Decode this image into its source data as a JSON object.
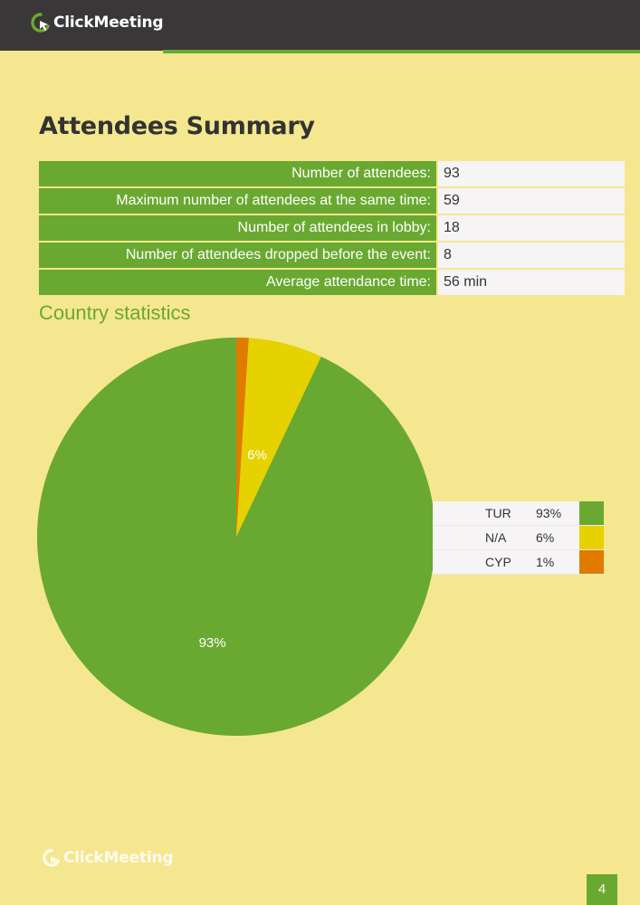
{
  "brand": {
    "name": "ClickMeeting"
  },
  "page": {
    "title": "Attendees Summary",
    "number": "4"
  },
  "summary": {
    "rows": [
      {
        "label": "Number of attendees:",
        "value": "93"
      },
      {
        "label": "Maximum number of attendees at the same time:",
        "value": "59"
      },
      {
        "label": "Number of attendees in lobby:",
        "value": "18"
      },
      {
        "label": "Number of attendees dropped before the event:",
        "value": "8"
      },
      {
        "label": "Average attendance time:",
        "value": "56 min"
      }
    ]
  },
  "country": {
    "heading": "Country statistics"
  },
  "chart_data": {
    "type": "pie",
    "categories": [
      "TUR",
      "N/A",
      "CYP"
    ],
    "values": [
      93,
      6,
      1
    ],
    "labels": [
      "93%",
      "6%",
      "1%"
    ],
    "slice_labels": [
      "93%",
      "6%",
      ""
    ],
    "colors": [
      "#6aa931",
      "#e6d200",
      "#e07b00"
    ],
    "legend": "right"
  }
}
